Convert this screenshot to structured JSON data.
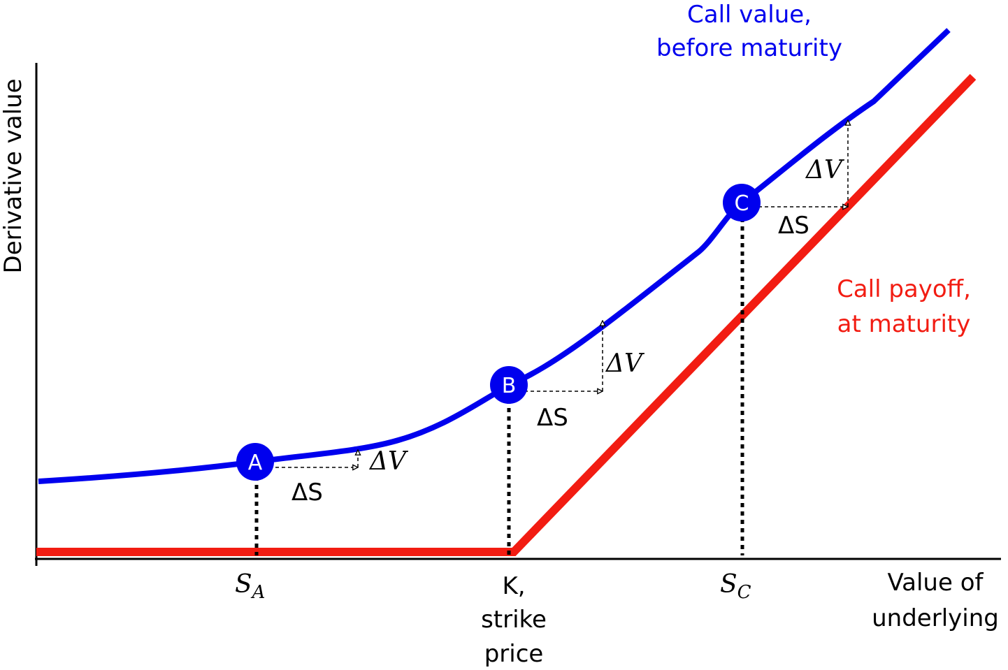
{
  "axes": {
    "y_label": "Derivative value",
    "x_label_line1": "Value of",
    "x_label_line2": "underlying"
  },
  "curves": {
    "call_value": {
      "label_line1": "Call value,",
      "label_line2": "before maturity",
      "color": "#0000ee"
    },
    "call_payoff": {
      "label_line1": "Call payoff,",
      "label_line2": "at maturity",
      "color": "#f21c12"
    }
  },
  "points": {
    "a": {
      "label": "A",
      "delta_s": "ΔS",
      "delta_v": "ΔV"
    },
    "b": {
      "label": "B",
      "delta_s": "ΔS",
      "delta_v": "ΔV"
    },
    "c": {
      "label": "C",
      "delta_s": "ΔS",
      "delta_v": "ΔV"
    }
  },
  "ticks": {
    "s_a": {
      "main": "S",
      "sub": "A"
    },
    "k_line1": "K,",
    "k_line2": "strike",
    "k_line3": "price",
    "s_c": {
      "main": "S",
      "sub": "C"
    }
  },
  "colors": {
    "axis": "#000000",
    "point_fill": "#0000ee",
    "guide": "#000000"
  }
}
